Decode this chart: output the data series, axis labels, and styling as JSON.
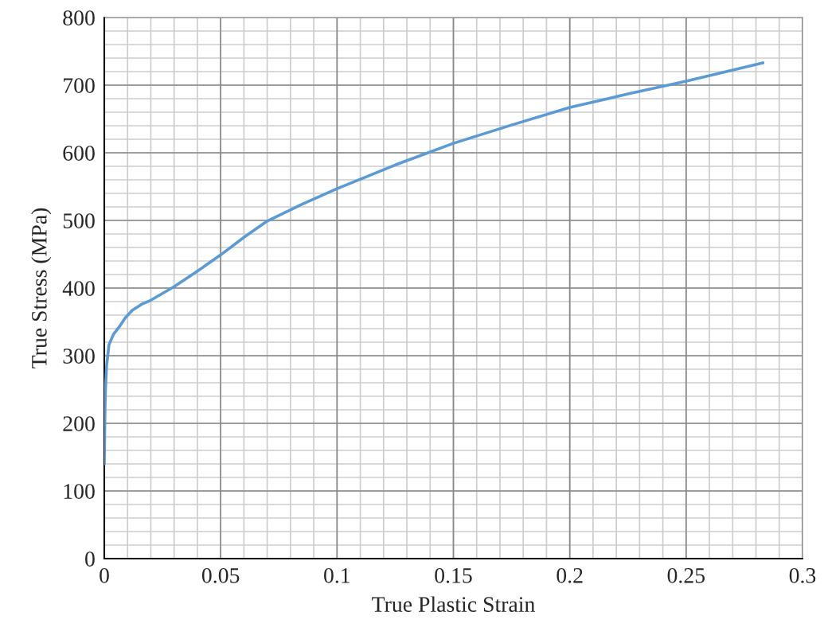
{
  "chart_data": {
    "type": "line",
    "xlabel": "True Plastic Strain",
    "ylabel": "True Stress (MPa)",
    "x": [
      0,
      0.0003,
      0.0005,
      0.001,
      0.002,
      0.004,
      0.0065,
      0.009,
      0.012,
      0.016,
      0.02,
      0.03,
      0.04,
      0.05,
      0.06,
      0.07,
      0.085,
      0.1,
      0.125,
      0.15,
      0.175,
      0.2,
      0.225,
      0.25,
      0.283
    ],
    "series": [
      {
        "color": "#5b9bd5",
        "values": [
          140,
          220,
          250,
          285,
          316,
          332,
          343,
          356,
          367,
          376,
          382,
          402,
          425,
          449,
          475,
          499,
          524,
          547,
          582,
          614,
          641,
          667,
          687,
          706,
          733
        ]
      }
    ],
    "xlim": [
      0,
      0.3
    ],
    "xticks": [
      0,
      0.05,
      0.1,
      0.15,
      0.2,
      0.25,
      0.3
    ],
    "ylim": [
      0,
      800
    ],
    "yticks": [
      0,
      100,
      200,
      300,
      400,
      500,
      600,
      700,
      800
    ],
    "grid": true,
    "line_style": "solid",
    "marker": "none"
  }
}
